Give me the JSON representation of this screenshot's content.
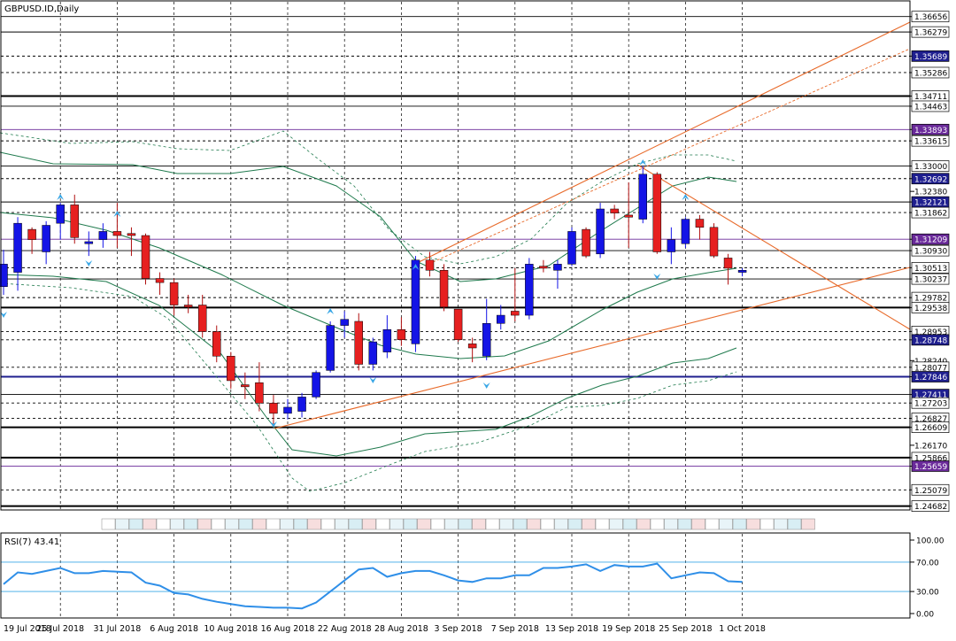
{
  "window": {
    "title": "GBPUSD.ID,Daily"
  },
  "rsi": {
    "title": "RSI(7) 43.41",
    "levels": [
      70,
      30
    ],
    "ticks": [
      "100.00",
      "70.00",
      "30.00",
      "0.00"
    ]
  },
  "colors": {
    "bull": "#1414e6",
    "bear": "#e62020",
    "band": "#1f7a4d",
    "trend": "#e86a2a",
    "rsi_line": "#2f8fe8",
    "label_bg_blue": "#1f1f8f",
    "label_bg_purple": "#6a2a9a"
  },
  "chart_data": {
    "type": "candlestick",
    "symbol": "GBPUSD.ID",
    "timeframe": "Daily",
    "ylim": [
      1.245,
      1.3665
    ],
    "x_axis_labels": [
      "19 Jul 2018",
      "25 Jul 2018",
      "31 Jul 2018",
      "6 Aug 2018",
      "10 Aug 2018",
      "16 Aug 2018",
      "22 Aug 2018",
      "28 Aug 2018",
      "3 Sep 2018",
      "7 Sep 2018",
      "13 Sep 2018",
      "19 Sep 2018",
      "25 Sep 2018",
      "1 Oct 2018"
    ],
    "y_tick_labels": [
      "1.36656",
      "1.36279",
      "1.35689",
      "1.35286",
      "1.34711",
      "1.34463",
      "1.33893",
      "1.33615",
      "1.33000",
      "1.32692",
      "1.32380",
      "1.32121",
      "1.31862",
      "1.31209",
      "1.30930",
      "1.30513",
      "1.30237",
      "1.29782",
      "1.29538",
      "1.28953",
      "1.28748",
      "1.28240",
      "1.28077",
      "1.27846",
      "1.27411",
      "1.27203",
      "1.26827",
      "1.26609",
      "1.26170",
      "1.25866",
      "1.25659",
      "1.25079",
      "1.24682"
    ],
    "ohlc": [
      [
        1.3005,
        1.3095,
        1.2985,
        1.306
      ],
      [
        1.304,
        1.3175,
        1.2995,
        1.316
      ],
      [
        1.3145,
        1.315,
        1.3085,
        1.312
      ],
      [
        1.309,
        1.3165,
        1.306,
        1.3155
      ],
      [
        1.316,
        1.321,
        1.312,
        1.3205
      ],
      [
        1.3205,
        1.323,
        1.311,
        1.3125
      ],
      [
        1.311,
        1.314,
        1.308,
        1.3115
      ],
      [
        1.312,
        1.316,
        1.31,
        1.314
      ],
      [
        1.314,
        1.321,
        1.31,
        1.313
      ],
      [
        1.3135,
        1.315,
        1.308,
        1.313
      ],
      [
        1.313,
        1.3135,
        1.301,
        1.3025
      ],
      [
        1.3025,
        1.304,
        1.2985,
        1.3015
      ],
      [
        1.3015,
        1.3025,
        1.2935,
        1.296
      ],
      [
        1.296,
        1.2985,
        1.294,
        1.2955
      ],
      [
        1.296,
        1.2985,
        1.288,
        1.2895
      ],
      [
        1.2895,
        1.291,
        1.282,
        1.2835
      ],
      [
        1.2835,
        1.2845,
        1.2755,
        1.2775
      ],
      [
        1.2765,
        1.2795,
        1.273,
        1.276
      ],
      [
        1.277,
        1.282,
        1.27,
        1.272
      ],
      [
        1.272,
        1.274,
        1.266,
        1.2695
      ],
      [
        1.2695,
        1.273,
        1.268,
        1.271
      ],
      [
        1.27,
        1.2745,
        1.2685,
        1.2735
      ],
      [
        1.2735,
        1.28,
        1.273,
        1.2795
      ],
      [
        1.28,
        1.292,
        1.2795,
        1.291
      ],
      [
        1.291,
        1.2945,
        1.288,
        1.2925
      ],
      [
        1.292,
        1.294,
        1.28,
        1.2815
      ],
      [
        1.2815,
        1.288,
        1.28,
        1.287
      ],
      [
        1.2845,
        1.2935,
        1.283,
        1.29
      ],
      [
        1.29,
        1.293,
        1.286,
        1.2875
      ],
      [
        1.2865,
        1.308,
        1.2845,
        1.307
      ],
      [
        1.307,
        1.309,
        1.303,
        1.3045
      ],
      [
        1.3045,
        1.306,
        1.2945,
        1.2955
      ],
      [
        1.295,
        1.295,
        1.287,
        1.2875
      ],
      [
        1.2865,
        1.288,
        1.282,
        1.2855
      ],
      [
        1.2835,
        1.2975,
        1.2825,
        1.2915
      ],
      [
        1.2915,
        1.296,
        1.29,
        1.2935
      ],
      [
        1.2945,
        1.305,
        1.292,
        1.2935
      ],
      [
        1.2935,
        1.3075,
        1.2925,
        1.306
      ],
      [
        1.3055,
        1.307,
        1.304,
        1.305
      ],
      [
        1.3045,
        1.307,
        1.3,
        1.306
      ],
      [
        1.306,
        1.315,
        1.3055,
        1.314
      ],
      [
        1.3145,
        1.315,
        1.3075,
        1.308
      ],
      [
        1.3085,
        1.321,
        1.3075,
        1.3195
      ],
      [
        1.3195,
        1.3205,
        1.317,
        1.3185
      ],
      [
        1.318,
        1.326,
        1.31,
        1.3175
      ],
      [
        1.317,
        1.33,
        1.316,
        1.328
      ],
      [
        1.328,
        1.3285,
        1.3085,
        1.309
      ],
      [
        1.309,
        1.315,
        1.306,
        1.312
      ],
      [
        1.311,
        1.3175,
        1.31,
        1.317
      ],
      [
        1.317,
        1.318,
        1.312,
        1.315
      ],
      [
        1.315,
        1.316,
        1.3075,
        1.308
      ],
      [
        1.3075,
        1.3085,
        1.301,
        1.305
      ],
      [
        1.304,
        1.305,
        1.303,
        1.3045
      ]
    ],
    "rsi_values": [
      40,
      56,
      54,
      58,
      62,
      55,
      55,
      58,
      57,
      56,
      42,
      38,
      28,
      26,
      20,
      16,
      13,
      10,
      9,
      8,
      8,
      7,
      15,
      30,
      45,
      60,
      62,
      50,
      55,
      58,
      58,
      52,
      45,
      43,
      48,
      48,
      52,
      52,
      62,
      62,
      64,
      67,
      58,
      66,
      64,
      64,
      68,
      48,
      52,
      56,
      55,
      44,
      43
    ]
  }
}
